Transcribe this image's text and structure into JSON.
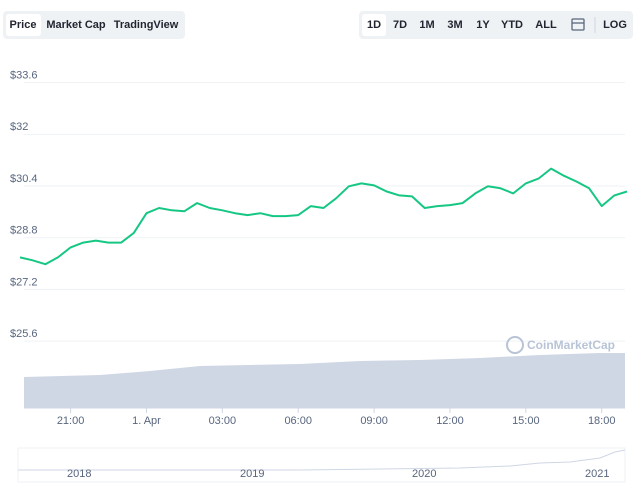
{
  "toolbar": {
    "left": [
      "Price",
      "Market Cap",
      "TradingView"
    ],
    "right": [
      "1D",
      "7D",
      "1M",
      "3M",
      "1Y",
      "YTD",
      "ALL",
      "LOG"
    ]
  },
  "chart_data": {
    "type": "line",
    "watermark": "CoinMarketCap",
    "categories": [
      null,
      null,
      null,
      null,
      "21:00",
      null,
      null,
      null,
      null,
      null,
      "1. Apr",
      null,
      null,
      null,
      null,
      null,
      "03:00",
      null,
      null,
      null,
      null,
      null,
      "06:00",
      null,
      null,
      null,
      null,
      null,
      "09:00",
      null,
      null,
      null,
      null,
      null,
      "12:00",
      null,
      null,
      null,
      null,
      null,
      "15:00",
      null,
      null,
      null,
      null,
      null,
      "18:00",
      null,
      null
    ],
    "series": [
      {
        "name": "Price",
        "color": "#16c784",
        "values": [
          28.19,
          28.1,
          27.98,
          28.19,
          28.5,
          28.65,
          28.71,
          28.65,
          28.65,
          28.95,
          29.56,
          29.72,
          29.65,
          29.62,
          29.87,
          29.72,
          29.65,
          29.56,
          29.5,
          29.56,
          29.47,
          29.47,
          29.5,
          29.78,
          29.72,
          30.02,
          30.39,
          30.48,
          30.42,
          30.23,
          30.11,
          30.08,
          29.72,
          29.78,
          29.81,
          29.87,
          30.17,
          30.39,
          30.33,
          30.17,
          30.48,
          30.63,
          30.94,
          30.72,
          30.54,
          30.33,
          29.78,
          30.11,
          30.23
        ]
      }
    ],
    "ylim": [
      23.53,
      34.3
    ],
    "yticks": [
      {
        "value": 25.6,
        "label": "$25.6"
      },
      {
        "value": 27.2,
        "label": "$27.2"
      },
      {
        "value": 28.8,
        "label": "$28.8"
      },
      {
        "value": 30.4,
        "label": "$30.4"
      },
      {
        "value": 32,
        "label": "$32"
      },
      {
        "value": 33.6,
        "label": "$33.6"
      }
    ],
    "grid": true
  },
  "navigator": {
    "labels": [
      "2018",
      "2019",
      "2020",
      "2021"
    ]
  }
}
